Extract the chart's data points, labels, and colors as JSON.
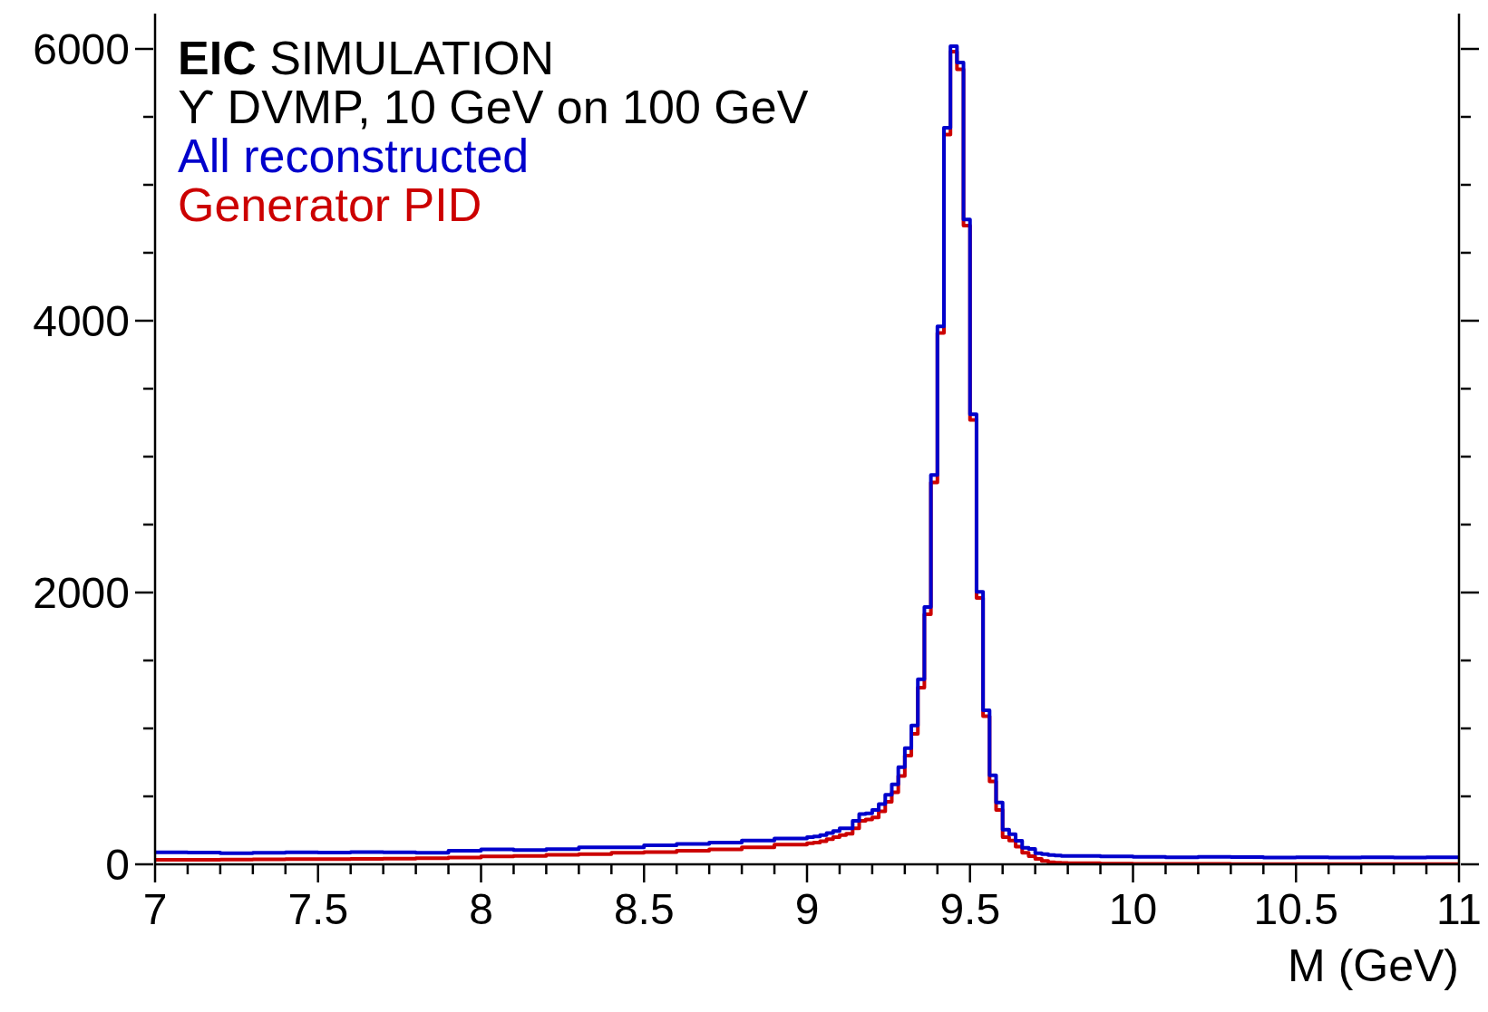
{
  "chart_data": {
    "type": "histogram",
    "title": "EIC SIMULATION",
    "subtitle": "ϒ DVMP, 10 GeV on 100 GeV",
    "xlabel": "M (GeV)",
    "bins": [
      7.0,
      7.1,
      7.2,
      7.3,
      7.4,
      7.5,
      7.6,
      7.7,
      7.8,
      7.9,
      8.0,
      8.1,
      8.2,
      8.3,
      8.4,
      8.5,
      8.6,
      8.7,
      8.8,
      8.9,
      9.0,
      9.02,
      9.04,
      9.06,
      9.08,
      9.1,
      9.12,
      9.14,
      9.16,
      9.18,
      9.2,
      9.22,
      9.24,
      9.26,
      9.28,
      9.3,
      9.32,
      9.34,
      9.36,
      9.38,
      9.4,
      9.42,
      9.44,
      9.46,
      9.48,
      9.5,
      9.52,
      9.54,
      9.56,
      9.58,
      9.6,
      9.62,
      9.64,
      9.66,
      9.68,
      9.7,
      9.72,
      9.74,
      9.76,
      9.78,
      9.8,
      9.9,
      10.0,
      10.1,
      10.2,
      10.3,
      10.4,
      10.5,
      10.6,
      10.7,
      10.8,
      10.9,
      11.0
    ],
    "series": [
      {
        "name": "Generator PID",
        "color": "#cc0000",
        "values": [
          33,
          33,
          35,
          36,
          38,
          38,
          40,
          42,
          45,
          50,
          58,
          62,
          70,
          75,
          85,
          90,
          100,
          110,
          125,
          145,
          155,
          160,
          170,
          185,
          200,
          215,
          225,
          265,
          320,
          330,
          345,
          390,
          460,
          530,
          650,
          800,
          960,
          1300,
          1840,
          2810,
          3910,
          5370,
          5980,
          5850,
          4700,
          3270,
          1960,
          1090,
          610,
          400,
          200,
          175,
          130,
          85,
          60,
          40,
          25,
          15,
          12,
          10,
          8,
          5,
          4,
          3,
          3,
          2,
          2,
          2,
          2,
          2,
          1,
          1
        ]
      },
      {
        "name": "All reconstructed",
        "color": "#0000cc",
        "values": [
          88,
          86,
          82,
          85,
          88,
          86,
          90,
          88,
          85,
          100,
          110,
          105,
          112,
          125,
          125,
          140,
          150,
          160,
          175,
          190,
          200,
          205,
          215,
          230,
          245,
          265,
          265,
          320,
          370,
          375,
          400,
          444,
          511,
          588,
          715,
          855,
          1021,
          1361,
          1894,
          2865,
          3958,
          5420,
          6020,
          5900,
          4745,
          3311,
          2005,
          1133,
          655,
          455,
          255,
          222,
          173,
          122,
          113,
          82,
          75,
          68,
          65,
          62,
          62,
          58,
          55,
          52,
          55,
          53,
          50,
          52,
          50,
          52,
          50,
          52
        ]
      }
    ],
    "xlim": [
      7,
      11
    ],
    "xticks": [
      7,
      {
        "value": 7.1,
        "label": null
      },
      {
        "value": 7.2,
        "label": null
      },
      {
        "value": 7.3,
        "label": null
      },
      {
        "value": 7.4,
        "label": null
      },
      7.5,
      {
        "value": 7.6,
        "label": null
      },
      {
        "value": 7.7,
        "label": null
      },
      {
        "value": 7.8,
        "label": null
      },
      {
        "value": 7.9,
        "label": null
      },
      8,
      {
        "value": 8.1,
        "label": null
      },
      {
        "value": 8.2,
        "label": null
      },
      {
        "value": 8.3,
        "label": null
      },
      {
        "value": 8.4,
        "label": null
      },
      8.5,
      {
        "value": 8.6,
        "label": null
      },
      {
        "value": 8.7,
        "label": null
      },
      {
        "value": 8.8,
        "label": null
      },
      {
        "value": 8.9,
        "label": null
      },
      9,
      {
        "value": 9.1,
        "label": null
      },
      {
        "value": 9.2,
        "label": null
      },
      {
        "value": 9.3,
        "label": null
      },
      {
        "value": 9.4,
        "label": null
      },
      9.5,
      {
        "value": 9.6,
        "label": null
      },
      {
        "value": 9.7,
        "label": null
      },
      {
        "value": 9.8,
        "label": null
      },
      {
        "value": 9.9,
        "label": null
      },
      10,
      {
        "value": 10.1,
        "label": null
      },
      {
        "value": 10.2,
        "label": null
      },
      {
        "value": 10.3,
        "label": null
      },
      {
        "value": 10.4,
        "label": null
      },
      10.5,
      {
        "value": 10.6,
        "label": null
      },
      {
        "value": 10.7,
        "label": null
      },
      {
        "value": 10.8,
        "label": null
      },
      {
        "value": 10.9,
        "label": null
      },
      11
    ],
    "ylim": [
      0,
      6260
    ],
    "yticks": [
      0,
      {
        "value": 500,
        "label": null
      },
      {
        "value": 1000,
        "label": null
      },
      {
        "value": 1500,
        "label": null
      },
      2000,
      {
        "value": 2500,
        "label": null
      },
      {
        "value": 3000,
        "label": null
      },
      {
        "value": 3500,
        "label": null
      },
      4000,
      {
        "value": 4500,
        "label": null
      },
      {
        "value": 5000,
        "label": null
      },
      {
        "value": 5500,
        "label": null
      },
      6000
    ],
    "legend": "top left"
  }
}
